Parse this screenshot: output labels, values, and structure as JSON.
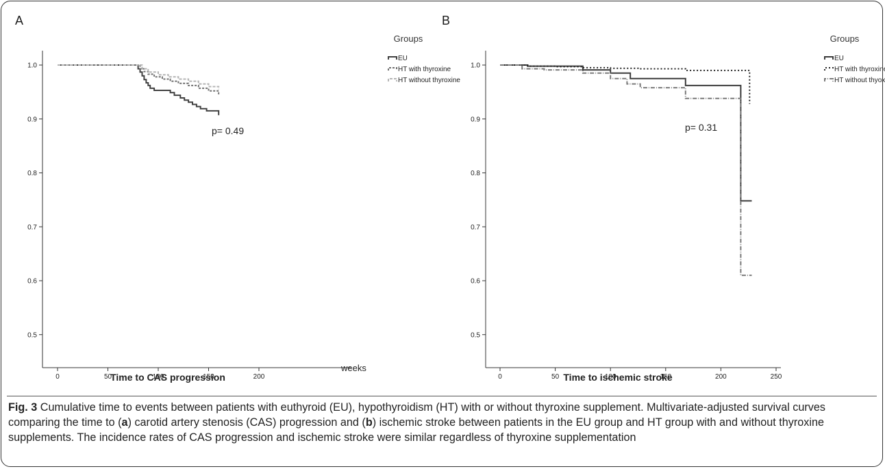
{
  "panels": {
    "a": {
      "letter": "A",
      "legend_title": "Groups",
      "p_value": "p= 0.49",
      "xlabel": "Time to CAS progression",
      "xunit": "weeks",
      "x_ticks": [
        "0",
        "50",
        "100",
        "150",
        "200"
      ],
      "y_ticks": [
        "1.0",
        "0.9",
        "0.8",
        "0.7",
        "0.6",
        "0.5"
      ]
    },
    "b": {
      "letter": "B",
      "legend_title": "Groups",
      "p_value": "p= 0.31",
      "xlabel": "Time to ischemic stroke",
      "x_ticks": [
        "0",
        "50",
        "100",
        "150",
        "200",
        "250"
      ],
      "y_ticks": [
        "1.0",
        "0.9",
        "0.8",
        "0.7",
        "0.6",
        "0.5"
      ]
    }
  },
  "caption": {
    "fig_label": "Fig. 3",
    "text_1": " Cumulative time to events between patients with euthyroid (EU), hypothyroidism (HT) with or without thyroxine supplement. Multivariate-adjusted survival curves comparing the time to (",
    "bold_a": "a",
    "text_2": ") carotid artery stenosis (CAS) progression and (",
    "bold_b": "b",
    "text_3": ") ischemic stroke between patients in the EU group and HT group with and without thyroxine supplements. The incidence rates of CAS progression and ischemic stroke were similar regardless of thyroxine supplementation"
  },
  "chart_data": [
    {
      "type": "line",
      "title": "",
      "xlabel": "Time to CAS progression",
      "ylabel": "",
      "xlim": [
        -5,
        210
      ],
      "ylim": [
        0.49,
        1.0
      ],
      "legend_placement": "top-right",
      "grid": false,
      "series": [
        {
          "name": "EU",
          "color": "#404040",
          "dash": "",
          "x": [
            0,
            78,
            80,
            82,
            84,
            86,
            88,
            90,
            92,
            96,
            112,
            116,
            122,
            126,
            130,
            134,
            138,
            142,
            148,
            160
          ],
          "y": [
            1.0,
            1.0,
            0.993,
            0.987,
            0.98,
            0.973,
            0.967,
            0.962,
            0.957,
            0.953,
            0.949,
            0.944,
            0.939,
            0.935,
            0.931,
            0.927,
            0.923,
            0.919,
            0.915,
            0.907
          ]
        },
        {
          "name": "HT with thyroxine",
          "color": "#6e6e6e",
          "dash": "3,2",
          "x": [
            0,
            78,
            82,
            86,
            90,
            96,
            104,
            112,
            120,
            130,
            140,
            150,
            160
          ],
          "y": [
            1.0,
            1.0,
            0.993,
            0.988,
            0.983,
            0.978,
            0.974,
            0.97,
            0.966,
            0.962,
            0.957,
            0.952,
            0.944
          ]
        },
        {
          "name": "HT without thyroxine",
          "color": "#b4b4b4",
          "dash": "4,2",
          "x": [
            0,
            78,
            84,
            90,
            100,
            110,
            120,
            130,
            140,
            150,
            160
          ],
          "y": [
            1.0,
            1.0,
            0.993,
            0.987,
            0.982,
            0.978,
            0.974,
            0.97,
            0.965,
            0.96,
            0.955
          ]
        }
      ]
    },
    {
      "type": "line",
      "title": "",
      "xlabel": "Time to ischemic stroke",
      "ylabel": "",
      "xlim": [
        -5,
        265
      ],
      "ylim": [
        0.49,
        1.0
      ],
      "legend_placement": "top-right",
      "grid": false,
      "series": [
        {
          "name": "EU",
          "color": "#3a3a3a",
          "dash": "",
          "x": [
            0,
            25,
            75,
            100,
            118,
            168,
            217,
            218,
            228
          ],
          "y": [
            1.0,
            0.998,
            0.991,
            0.985,
            0.975,
            0.962,
            0.962,
            0.748,
            0.748
          ]
        },
        {
          "name": "HT with thyroxine",
          "color": "#222222",
          "dash": "2,3",
          "x": [
            0,
            25,
            50,
            75,
            100,
            125,
            168,
            218,
            226
          ],
          "y": [
            1.0,
            0.998,
            0.997,
            0.995,
            0.994,
            0.993,
            0.99,
            0.99,
            0.928
          ]
        },
        {
          "name": "HT without thyoxine",
          "color": "#7a7a7a",
          "dash": "6,2,1,2",
          "x": [
            0,
            20,
            40,
            75,
            100,
            115,
            127,
            168,
            217,
            218,
            228
          ],
          "y": [
            1.0,
            0.993,
            0.991,
            0.985,
            0.975,
            0.965,
            0.958,
            0.938,
            0.938,
            0.61,
            0.61
          ]
        }
      ]
    }
  ]
}
